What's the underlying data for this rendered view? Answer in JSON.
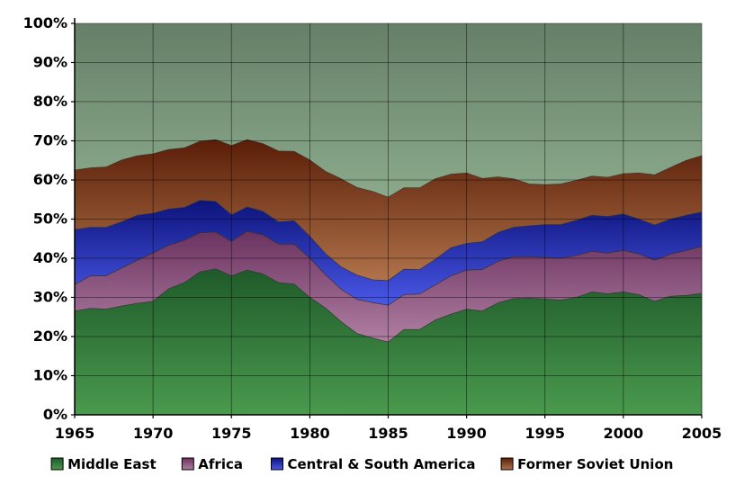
{
  "chart_data": {
    "type": "area",
    "stacked": true,
    "x": [
      1965,
      1966,
      1967,
      1968,
      1969,
      1970,
      1971,
      1972,
      1973,
      1974,
      1975,
      1976,
      1977,
      1978,
      1979,
      1980,
      1981,
      1982,
      1983,
      1984,
      1985,
      1986,
      1987,
      1988,
      1989,
      1990,
      1991,
      1992,
      1993,
      1994,
      1995,
      1996,
      1997,
      1998,
      1999,
      2000,
      2001,
      2002,
      2003,
      2004,
      2005
    ],
    "series": [
      {
        "name": "Middle East",
        "color": "#2f7a3a",
        "values": [
          26.5,
          27.2,
          27.0,
          27.8,
          28.5,
          29.0,
          32.2,
          33.8,
          36.5,
          37.3,
          35.5,
          37.0,
          36.0,
          33.8,
          33.4,
          30.0,
          27.3,
          23.8,
          20.8,
          19.6,
          18.6,
          21.8,
          21.8,
          24.2,
          25.7,
          27.0,
          26.5,
          28.6,
          29.7,
          29.8,
          29.6,
          29.3,
          30.0,
          31.4,
          30.9,
          31.4,
          30.7,
          29.0,
          30.3,
          30.5,
          31.0
        ]
      },
      {
        "name": "Africa",
        "color": "#8a4f78",
        "values": [
          6.8,
          8.3,
          8.5,
          9.7,
          11.0,
          12.3,
          11.1,
          10.8,
          10.0,
          9.4,
          8.8,
          9.9,
          10.0,
          9.8,
          10.2,
          10.0,
          8.5,
          8.3,
          8.7,
          9.1,
          9.4,
          8.9,
          9.1,
          9.0,
          9.8,
          10.0,
          10.6,
          10.6,
          10.7,
          10.6,
          10.6,
          10.7,
          10.7,
          10.4,
          10.4,
          10.6,
          10.4,
          10.5,
          10.7,
          11.5,
          12.0
        ]
      },
      {
        "name": "Central & South America",
        "color": "#1f2a9a",
        "values": [
          14.0,
          12.4,
          12.4,
          11.8,
          11.5,
          10.2,
          9.3,
          8.4,
          8.3,
          7.8,
          6.8,
          6.2,
          6.0,
          5.7,
          6.0,
          5.6,
          5.4,
          5.7,
          6.2,
          5.8,
          6.3,
          6.5,
          6.2,
          6.5,
          7.2,
          6.8,
          7.1,
          7.4,
          7.5,
          7.9,
          8.4,
          8.6,
          9.0,
          9.2,
          9.4,
          9.3,
          8.9,
          9.0,
          9.0,
          9.0,
          8.8
        ]
      },
      {
        "name": "Former Soviet Union",
        "color": "#7a3a14",
        "values": [
          15.2,
          15.2,
          15.4,
          15.8,
          15.2,
          15.2,
          15.2,
          15.2,
          15.1,
          15.8,
          17.7,
          17.2,
          17.3,
          18.1,
          17.7,
          19.5,
          21.0,
          22.5,
          22.4,
          22.6,
          21.3,
          20.8,
          20.9,
          20.6,
          18.8,
          18.0,
          16.2,
          14.2,
          12.4,
          10.7,
          10.2,
          10.4,
          10.2,
          10.0,
          10.0,
          10.3,
          11.8,
          12.8,
          13.2,
          14.0,
          14.4
        ]
      }
    ],
    "ylim": [
      0,
      100
    ],
    "yticks": [
      "0%",
      "10%",
      "20%",
      "30%",
      "40%",
      "50%",
      "60%",
      "70%",
      "80%",
      "90%",
      "100%"
    ],
    "xticks": [
      "1965",
      "1970",
      "1975",
      "1980",
      "1985",
      "1990",
      "1995",
      "2000",
      "2005"
    ],
    "xlim": [
      1965,
      2005
    ],
    "grid": true,
    "legend_position": "bottom"
  }
}
